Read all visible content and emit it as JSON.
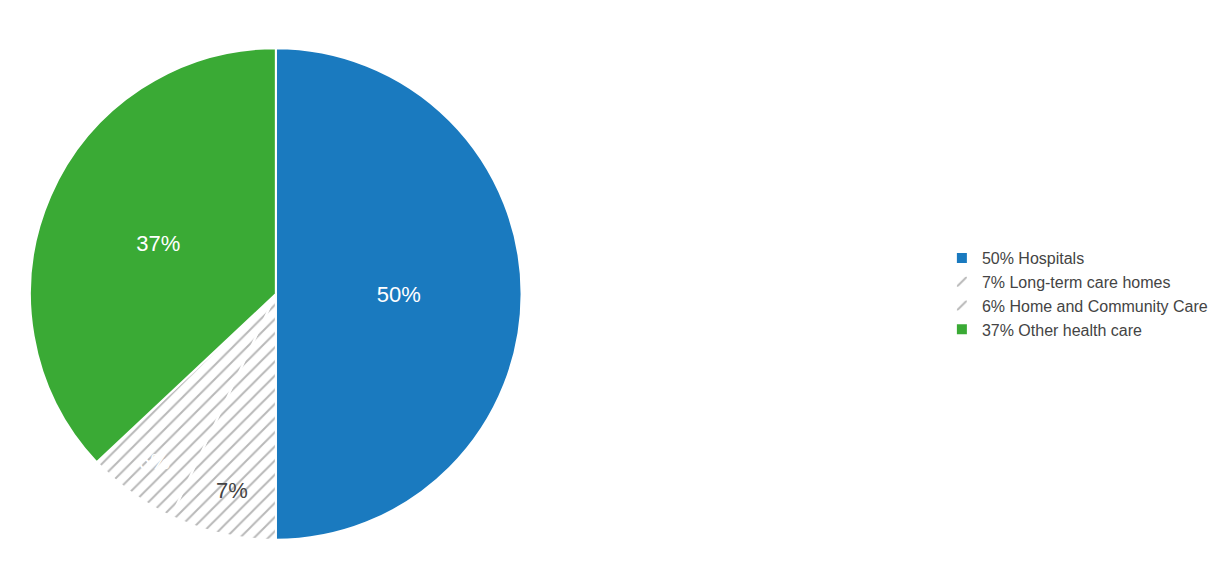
{
  "chart_data": {
    "type": "pie",
    "categories": [
      "50% Hospitals",
      "7% Long-term care homes",
      "6% Home and Community Care",
      "37% Other health care"
    ],
    "values": [
      50,
      7,
      6,
      37
    ],
    "value_labels": [
      "50%",
      "7%",
      "6%",
      "37%"
    ],
    "colors": [
      "#1a7abf",
      "#c8e0f0",
      "#3d3d3d",
      "#3aaa35"
    ],
    "legend": "right",
    "data_labels": true
  }
}
